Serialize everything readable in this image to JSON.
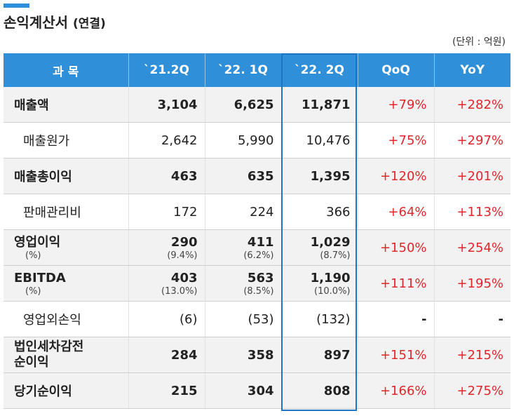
{
  "title": "손익계산서",
  "title_sub": "(연결)",
  "unit": "(단위 : 억원)",
  "columns": [
    "과  목",
    "`21.2Q",
    "`22. 1Q",
    "`22. 2Q",
    "QoQ",
    "YoY"
  ],
  "rows": [
    {
      "item": "매출액",
      "v1": "3,104",
      "v2": "6,625",
      "v3": "11,871",
      "qoq": "+79%",
      "yoy": "+282%"
    },
    {
      "item": "매출원가",
      "v1": "2,642",
      "v2": "5,990",
      "v3": "10,476",
      "qoq": "+75%",
      "yoy": "+297%"
    },
    {
      "item": "매출총이익",
      "v1": "463",
      "v2": "635",
      "v3": "1,395",
      "qoq": "+120%",
      "yoy": "+201%"
    },
    {
      "item": "판매관리비",
      "v1": "172",
      "v2": "224",
      "v3": "366",
      "qoq": "+64%",
      "yoy": "+113%"
    },
    {
      "item": "영업이익",
      "item_sub": "(%)",
      "v1": "290",
      "v1_sub": "(9.4%)",
      "v2": "411",
      "v2_sub": "(6.2%)",
      "v3": "1,029",
      "v3_sub": "(8.7%)",
      "qoq": "+150%",
      "yoy": "+254%"
    },
    {
      "item": "EBITDA",
      "item_sub": "(%)",
      "v1": "403",
      "v1_sub": "(13.0%)",
      "v2": "563",
      "v2_sub": "(8.5%)",
      "v3": "1,190",
      "v3_sub": "(10.0%)",
      "qoq": "+111%",
      "yoy": "+195%"
    },
    {
      "item": "영업외손익",
      "v1": "(6)",
      "v2": "(53)",
      "v3": "(132)",
      "qoq": "-",
      "yoy": "-"
    },
    {
      "item": "법인세차감전",
      "item2": "순이익",
      "v1": "284",
      "v2": "358",
      "v3": "897",
      "qoq": "+151%",
      "yoy": "+215%"
    },
    {
      "item": "당기순이익",
      "v1": "215",
      "v2": "304",
      "v3": "808",
      "qoq": "+166%",
      "yoy": "+275%"
    }
  ],
  "colors": {
    "header_bg": "#2f8fd8",
    "highlight_border": "#1f74c4",
    "change_text": "#e0262b",
    "bold_row_bg": "#f2f2f2"
  }
}
